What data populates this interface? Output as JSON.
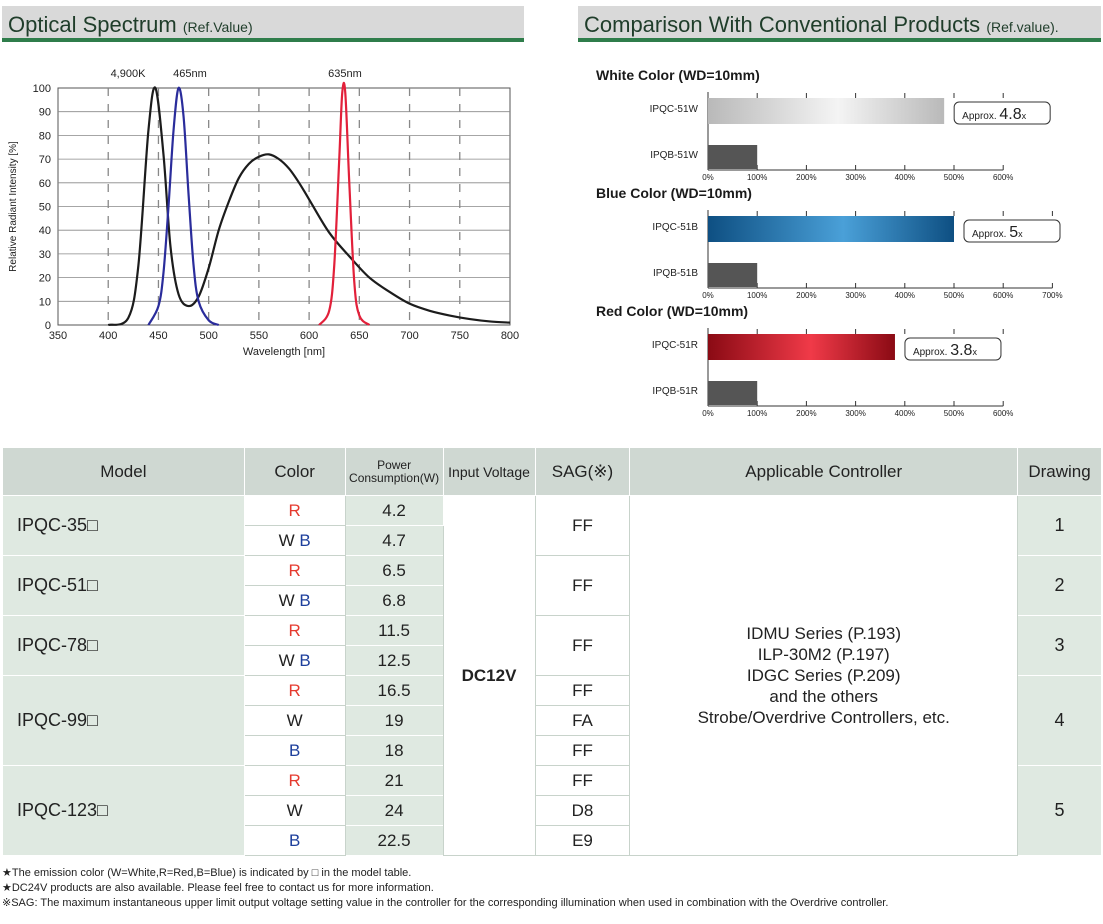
{
  "left_title": {
    "main": "Optical Spectrum",
    "ref": "(Ref.Value)"
  },
  "right_title": {
    "main": "Comparison With Conventional Products",
    "ref": "(Ref.value)."
  },
  "spectrum": {
    "ylabel": "Relative Radiant Intensity [%]",
    "xlabel": "Wavelength [nm]",
    "annotations": [
      "4,900K",
      "465nm",
      "635nm"
    ],
    "colors": {
      "white": "#1c1c1c",
      "blue": "#2a2c9b",
      "red": "#e2203a"
    }
  },
  "comparison": {
    "groups": [
      {
        "title": "White Color (WD=10mm)",
        "colors": [
          "#b9b9b9",
          "#f4f4f4"
        ],
        "max": 600,
        "labels": [
          "IPQC-51W",
          "IPQB-51W"
        ],
        "values": [
          480,
          100
        ],
        "approx_prefix": "Approx.",
        "approx_value": "4.8",
        "approx_suffix": "x",
        "ticks": [
          "0%",
          "100%",
          "200%",
          "300%",
          "400%",
          "500%",
          "600%"
        ]
      },
      {
        "title": "Blue Color (WD=10mm)",
        "colors": [
          "#0e4f82",
          "#4aa0d8"
        ],
        "max": 700,
        "labels": [
          "IPQC-51B",
          "IPQB-51B"
        ],
        "values": [
          500,
          100
        ],
        "approx_prefix": "Approx.",
        "approx_value": "5",
        "approx_suffix": "x",
        "ticks": [
          "0%",
          "100%",
          "200%",
          "300%",
          "400%",
          "500%",
          "600%",
          "700%"
        ]
      },
      {
        "title": "Red Color (WD=10mm)",
        "colors": [
          "#8a0a14",
          "#f03a48"
        ],
        "max": 600,
        "labels": [
          "IPQC-51R",
          "IPQB-51R"
        ],
        "values": [
          380,
          100
        ],
        "approx_prefix": "Approx.",
        "approx_value": "3.8",
        "approx_suffix": "x",
        "ticks": [
          "0%",
          "100%",
          "200%",
          "300%",
          "400%",
          "500%",
          "600%"
        ]
      }
    ],
    "baseline_color": "#555555"
  },
  "chart_data": [
    {
      "type": "line",
      "title": "Optical Spectrum",
      "xlabel": "Wavelength [nm]",
      "ylabel": "Relative Radiant Intensity [%]",
      "xlim": [
        350,
        800
      ],
      "ylim": [
        0,
        100
      ],
      "x_ticks": [
        350,
        400,
        450,
        500,
        550,
        600,
        650,
        700,
        750,
        800
      ],
      "y_ticks": [
        0,
        10,
        20,
        30,
        40,
        50,
        60,
        70,
        80,
        90,
        100
      ],
      "grid": true,
      "series": [
        {
          "name": "4,900K",
          "x": [
            400,
            420,
            430,
            440,
            447,
            455,
            462,
            470,
            480,
            490,
            500,
            510,
            520,
            530,
            540,
            550,
            560,
            570,
            580,
            590,
            600,
            620,
            640,
            660,
            680,
            700,
            720,
            740,
            760,
            780,
            800
          ],
          "y": [
            0,
            3,
            25,
            82,
            100,
            72,
            33,
            13,
            8,
            12,
            24,
            40,
            52,
            62,
            68,
            71,
            72,
            70,
            66,
            60,
            53,
            39,
            29,
            20,
            14,
            9,
            6,
            4,
            2.5,
            1.5,
            1
          ]
        },
        {
          "name": "465nm",
          "x": [
            440,
            450,
            455,
            460,
            465,
            470,
            475,
            480,
            485,
            490,
            500,
            510
          ],
          "y": [
            0,
            8,
            22,
            50,
            82,
            100,
            88,
            55,
            25,
            10,
            2,
            0
          ]
        },
        {
          "name": "635nm",
          "x": [
            610,
            620,
            625,
            630,
            633,
            636,
            640,
            645,
            650,
            660
          ],
          "y": [
            0,
            6,
            25,
            70,
            98,
            98,
            60,
            18,
            4,
            0
          ]
        }
      ]
    },
    {
      "type": "bar",
      "title": "White Color (WD=10mm)",
      "categories": [
        "IPQC-51W",
        "IPQB-51W"
      ],
      "values": [
        480,
        100
      ],
      "xlim": [
        0,
        600
      ]
    },
    {
      "type": "bar",
      "title": "Blue Color (WD=10mm)",
      "categories": [
        "IPQC-51B",
        "IPQB-51B"
      ],
      "values": [
        500,
        100
      ],
      "xlim": [
        0,
        700
      ]
    },
    {
      "type": "bar",
      "title": "Red Color (WD=10mm)",
      "categories": [
        "IPQC-51R",
        "IPQB-51R"
      ],
      "values": [
        380,
        100
      ],
      "xlim": [
        0,
        600
      ]
    }
  ],
  "table": {
    "headers": {
      "model": "Model",
      "color": "Color",
      "power_1": "Power",
      "power_2": "Consumption(W)",
      "voltage": "Input Voltage",
      "sag": "SAG(※)",
      "controller": "Applicable Controller",
      "drawing": "Drawing"
    },
    "voltage": "DC12V",
    "controller_lines": [
      "IDMU Series (P.193)",
      "ILP-30M2 (P.197)",
      "IDGC Series (P.209)",
      "and the others",
      "Strobe/Overdrive Controllers, etc."
    ],
    "models": [
      {
        "model": "IPQC-35□",
        "drawing": "1",
        "rows": [
          {
            "color": "R",
            "power": "4.2"
          },
          {
            "color": "W B",
            "power": "4.7"
          }
        ],
        "sag": [
          "FF"
        ]
      },
      {
        "model": "IPQC-51□",
        "drawing": "2",
        "rows": [
          {
            "color": "R",
            "power": "6.5"
          },
          {
            "color": "W B",
            "power": "6.8"
          }
        ],
        "sag": [
          "FF"
        ]
      },
      {
        "model": "IPQC-78□",
        "drawing": "3",
        "rows": [
          {
            "color": "R",
            "power": "11.5"
          },
          {
            "color": "W B",
            "power": "12.5"
          }
        ],
        "sag": [
          "FF"
        ]
      },
      {
        "model": "IPQC-99□",
        "drawing": "4",
        "rows": [
          {
            "color": "R",
            "power": "16.5"
          },
          {
            "color": "W",
            "power": "19"
          },
          {
            "color": "B",
            "power": "18"
          }
        ],
        "sag": [
          "FF",
          "FA",
          "FF"
        ]
      },
      {
        "model": "IPQC-123□",
        "drawing": "5",
        "rows": [
          {
            "color": "R",
            "power": "21"
          },
          {
            "color": "W",
            "power": "24"
          },
          {
            "color": "B",
            "power": "22.5"
          }
        ],
        "sag": [
          "FF",
          "D8",
          "E9"
        ]
      }
    ]
  },
  "notes": [
    "★The emission color (W=White,R=Red,B=Blue) is indicated by □ in the model table.",
    "★DC24V products are also available. Please feel free to contact us for more information.",
    "※SAG: The maximum instantaneous upper limit output voltage setting value in the controller for the corresponding illumination when used in combination with the Overdrive controller."
  ]
}
